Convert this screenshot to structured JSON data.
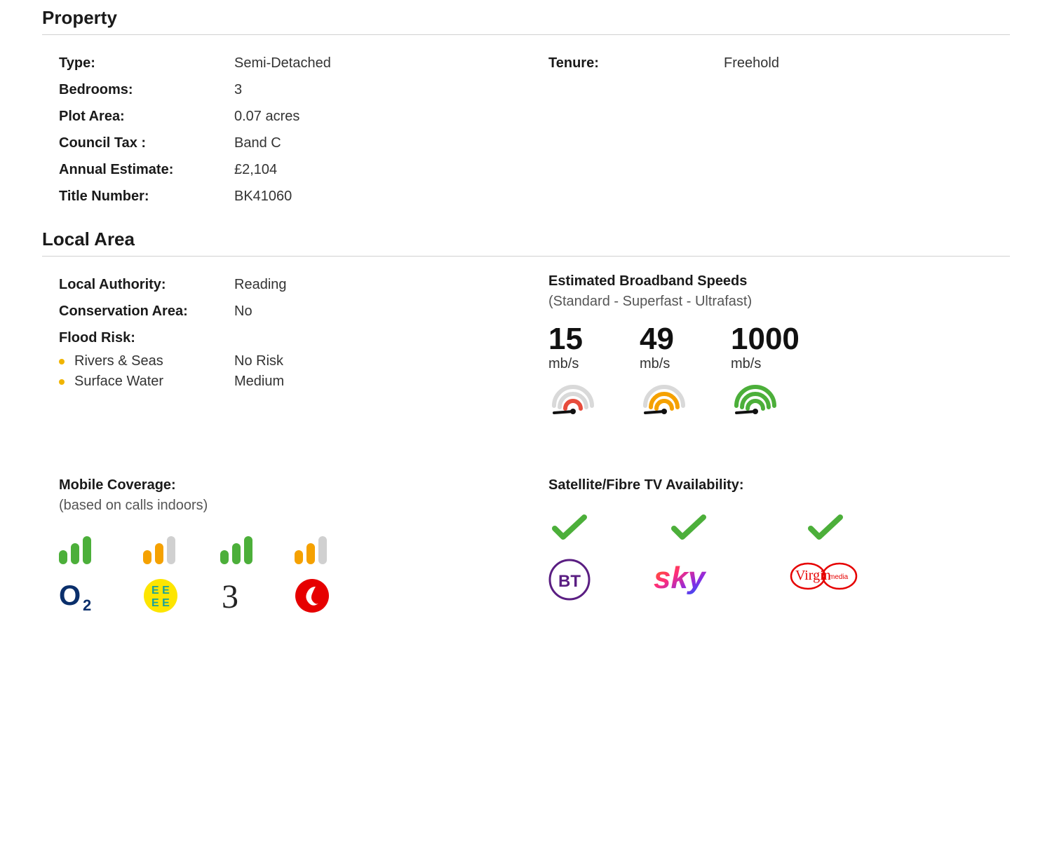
{
  "property": {
    "heading": "Property",
    "left": [
      {
        "key": "Type:",
        "val": "Semi-Detached"
      },
      {
        "key": "Bedrooms:",
        "val": "3"
      },
      {
        "key": "Plot Area:",
        "val": "0.07 acres"
      },
      {
        "key": "Council Tax :",
        "val": "Band C"
      },
      {
        "key": "Annual Estimate:",
        "val": "£2,104"
      },
      {
        "key": "Title Number:",
        "val": "BK41060"
      }
    ],
    "right": [
      {
        "key": "Tenure:",
        "val": "Freehold"
      }
    ]
  },
  "localArea": {
    "heading": "Local Area",
    "rows": [
      {
        "key": "Local Authority:",
        "val": "Reading"
      },
      {
        "key": "Conservation Area:",
        "val": "No"
      }
    ],
    "floodLabel": "Flood Risk:",
    "flood": [
      {
        "label": "Rivers & Seas",
        "val": "No Risk",
        "dot": "#f0b400"
      },
      {
        "label": "Surface Water",
        "val": "Medium",
        "dot": "#f0b400"
      }
    ],
    "broadband": {
      "title": "Estimated Broadband Speeds",
      "sub": "(Standard - Superfast - Ultrafast)",
      "unit": "mb/s",
      "items": [
        {
          "value": "15",
          "arc2": "#e74c3c",
          "arc3": "#d9d9d9",
          "arc4": "#d9d9d9"
        },
        {
          "value": "49",
          "arc2": "#f5a100",
          "arc3": "#f5a100",
          "arc4": "#d9d9d9"
        },
        {
          "value": "1000",
          "arc2": "#4caf3a",
          "arc3": "#4caf3a",
          "arc4": "#4caf3a"
        }
      ]
    }
  },
  "mobile": {
    "title": "Mobile Coverage:",
    "sub": "(based on calls indoors)",
    "carriers": [
      {
        "name": "O2",
        "bars": [
          "green",
          "green",
          "green"
        ],
        "logo": "o2"
      },
      {
        "name": "EE",
        "bars": [
          "orange",
          "orange",
          "grey"
        ],
        "logo": "ee"
      },
      {
        "name": "Three",
        "bars": [
          "green",
          "green",
          "green"
        ],
        "logo": "three"
      },
      {
        "name": "Vodafone",
        "bars": [
          "orange",
          "orange",
          "grey"
        ],
        "logo": "vodafone"
      }
    ]
  },
  "tv": {
    "title": "Satellite/Fibre TV Availability:",
    "providers": [
      {
        "name": "BT",
        "available": true,
        "logo": "bt"
      },
      {
        "name": "Sky",
        "available": true,
        "logo": "sky"
      },
      {
        "name": "Virgin Media",
        "available": true,
        "logo": "virgin"
      }
    ]
  },
  "colors": {
    "check": "#4caf3a"
  }
}
